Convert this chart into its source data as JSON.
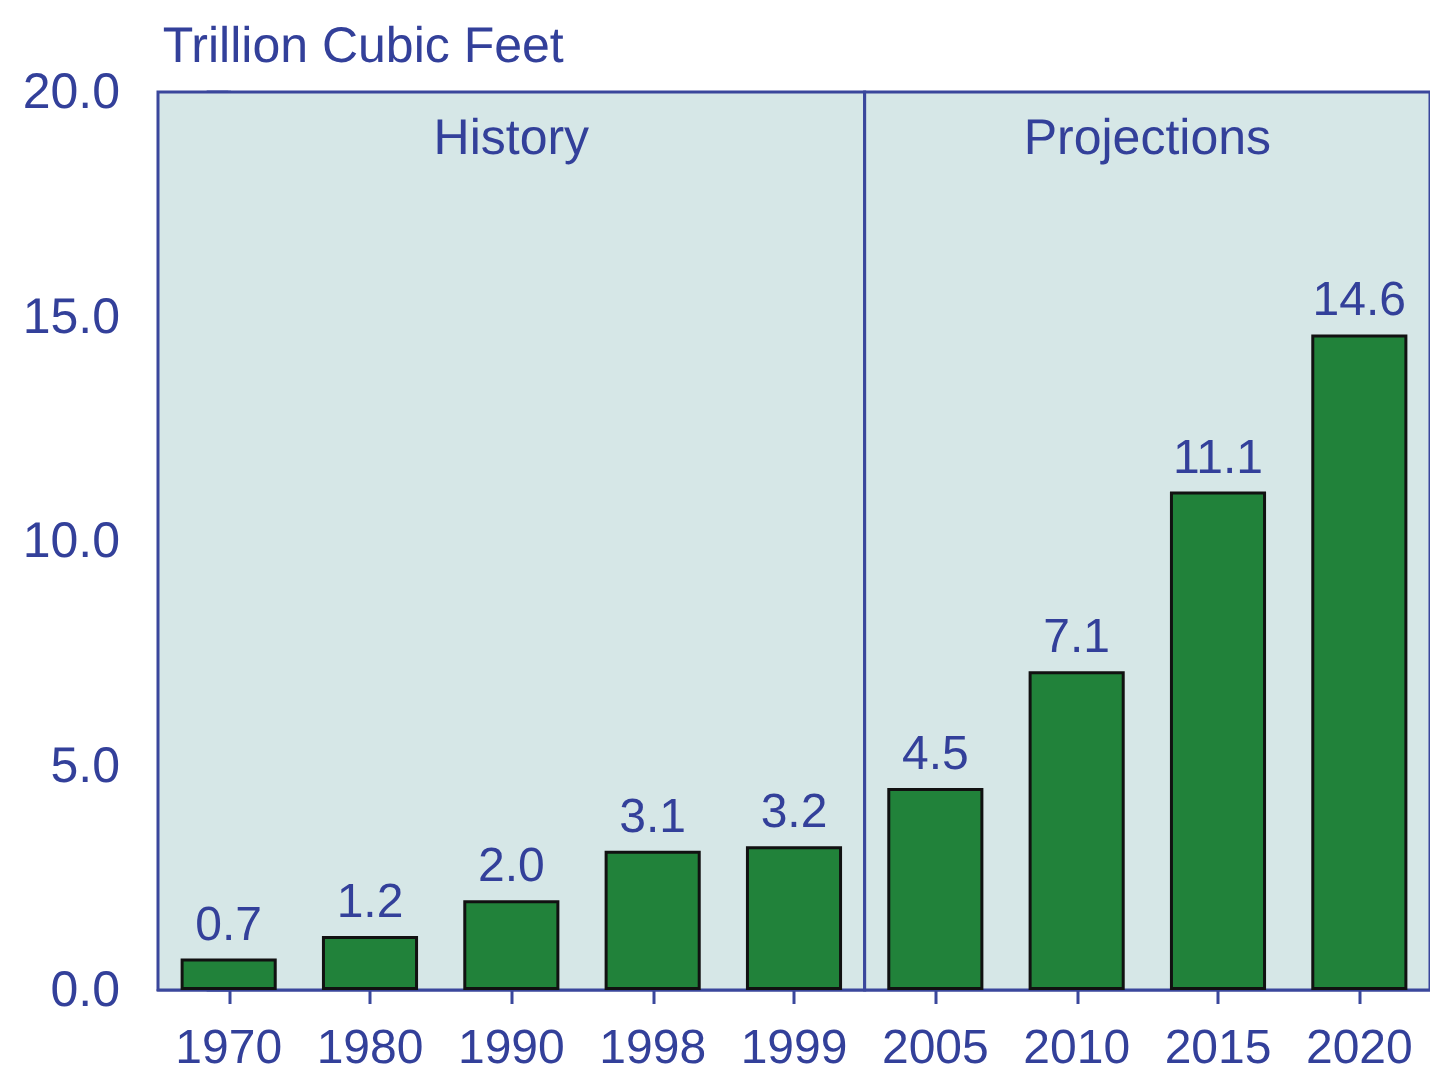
{
  "chart_data": {
    "type": "bar",
    "ylabel": "Trillion Cubic Feet",
    "categories": [
      "1970",
      "1980",
      "1990",
      "1998",
      "1999",
      "2005",
      "2010",
      "2015",
      "2020"
    ],
    "values": [
      0.7,
      1.2,
      2.0,
      3.1,
      3.2,
      4.5,
      7.1,
      11.1,
      14.6
    ],
    "value_labels": [
      "0.7",
      "1.2",
      "2.0",
      "3.1",
      "3.2",
      "4.5",
      "7.1",
      "11.1",
      "14.6"
    ],
    "color": "#21823a",
    "ylim": [
      0,
      20
    ],
    "yticks": [
      {
        "value": 0,
        "label": "0.0"
      },
      {
        "value": 5,
        "label": "5.0"
      },
      {
        "value": 10,
        "label": "10.0"
      },
      {
        "value": 15,
        "label": "15.0"
      },
      {
        "value": 20,
        "label": "20.0"
      }
    ],
    "bands": [
      {
        "axis": "x",
        "from": "1970",
        "to": "1999",
        "label": "History",
        "color": "#d6e7e7"
      },
      {
        "axis": "x",
        "from": "2005",
        "to": "2020",
        "label": "Projections",
        "color": "#d6e7e7"
      }
    ]
  }
}
